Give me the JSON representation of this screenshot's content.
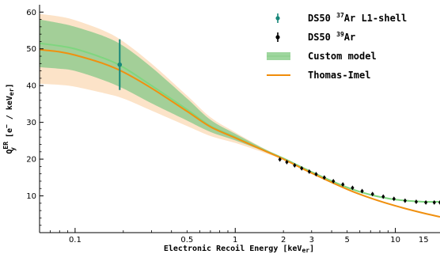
{
  "chart_data": {
    "type": "line",
    "xlabel": {
      "base": "Electronic Recoil Energy [keV",
      "sub": "er",
      "tail": "]"
    },
    "ylabel": {
      "q": "Q",
      "sub": "y",
      "sup": "ER",
      "tail": " [e",
      "tailsup": "−",
      "tail2": " / keV",
      "tailsub": "er",
      "tail3": "]"
    },
    "x_scale": "log",
    "xlim": [
      0.06,
      19
    ],
    "ylim": [
      0,
      62
    ],
    "x_ticks": [
      {
        "v": 0.1,
        "label": "0.1"
      },
      {
        "v": 0.5,
        "label": "0.5"
      },
      {
        "v": 1,
        "label": "1"
      },
      {
        "v": 2,
        "label": "2"
      },
      {
        "v": 3,
        "label": "3"
      },
      {
        "v": 5,
        "label": "5"
      },
      {
        "v": 10,
        "label": "10"
      },
      {
        "v": 15,
        "label": "15"
      }
    ],
    "y_ticks": [
      10,
      20,
      30,
      40,
      50,
      60
    ],
    "legend_position": "top-right",
    "legend": [
      {
        "label_pre": "DS50 ",
        "label_sup": "37",
        "label_post": "Ar L1-shell",
        "kind": "errorpoint",
        "color": "#17877a"
      },
      {
        "label_pre": "DS50 ",
        "label_sup": "39",
        "label_post": "Ar",
        "kind": "errorpoint",
        "color": "#000000"
      },
      {
        "label_pre": "Custom model",
        "label_sup": "",
        "label_post": "",
        "kind": "band",
        "color": "#8fd08f",
        "fill": "#9ed69e"
      },
      {
        "label_pre": "Thomas-Imel",
        "label_sup": "",
        "label_post": "",
        "kind": "line",
        "color": "#f08c0a"
      }
    ],
    "series": [
      {
        "name": "Custom model",
        "color": "#7fd67f",
        "band_color": "#8cc98c",
        "x": [
          0.06,
          0.08,
          0.1,
          0.15,
          0.2,
          0.3,
          0.5,
          0.7,
          1.0,
          1.5,
          2.0,
          3.0,
          5.0,
          7.0,
          10,
          15,
          19
        ],
        "y": [
          51.5,
          50.8,
          50.0,
          47.5,
          45.0,
          40.0,
          33.5,
          29.0,
          26.0,
          22.5,
          20.2,
          16.5,
          12.3,
          10.3,
          9.0,
          8.4,
          8.4
        ],
        "y_low": [
          45.0,
          44.6,
          44.0,
          41.5,
          39.2,
          35.2,
          30.5,
          27.4,
          25.1,
          22.2,
          20.1,
          16.3,
          12.1,
          10.1,
          8.8,
          8.2,
          8.2
        ],
        "y_high": [
          58.0,
          57.0,
          56.0,
          53.5,
          50.8,
          45.0,
          36.5,
          30.7,
          26.9,
          22.9,
          20.4,
          16.7,
          12.5,
          10.5,
          9.2,
          8.6,
          8.6
        ]
      },
      {
        "name": "Thomas-Imel",
        "color": "#f0900f",
        "band_color": "#fbd9b5",
        "x": [
          0.06,
          0.08,
          0.1,
          0.15,
          0.2,
          0.3,
          0.5,
          0.7,
          1.0,
          1.5,
          2.0,
          3.0,
          5.0,
          7.0,
          10,
          15,
          19
        ],
        "y": [
          49.8,
          49.2,
          48.3,
          46.0,
          43.7,
          39.3,
          33.0,
          28.8,
          25.8,
          22.4,
          20.0,
          16.2,
          11.8,
          9.4,
          7.3,
          5.3,
          4.3
        ],
        "y_low": [
          40.5,
          40.2,
          39.7,
          38.0,
          36.5,
          33.2,
          29.0,
          26.3,
          24.4,
          21.8,
          19.8,
          16.0,
          11.6,
          9.2,
          7.1,
          5.1,
          4.1
        ],
        "y_high": [
          59.5,
          58.8,
          57.8,
          55.0,
          52.0,
          46.0,
          37.3,
          31.4,
          27.3,
          23.0,
          20.3,
          16.4,
          12.0,
          9.6,
          7.5,
          5.5,
          4.5
        ]
      }
    ],
    "points": [
      {
        "name": "DS50 37Ar L1-shell",
        "color": "#17877a",
        "marker": "circle",
        "data": [
          {
            "x": 0.19,
            "y": 45.7,
            "yerr_low": 38.8,
            "yerr_high": 52.6
          }
        ]
      },
      {
        "name": "DS50 39Ar",
        "color": "#000000",
        "marker": "diamond",
        "data": [
          {
            "x": 1.9,
            "y": 19.9
          },
          {
            "x": 2.1,
            "y": 19.2
          },
          {
            "x": 2.35,
            "y": 18.3
          },
          {
            "x": 2.6,
            "y": 17.5
          },
          {
            "x": 2.9,
            "y": 16.6
          },
          {
            "x": 3.2,
            "y": 15.9
          },
          {
            "x": 3.6,
            "y": 15.0
          },
          {
            "x": 4.1,
            "y": 14.0
          },
          {
            "x": 4.7,
            "y": 13.1
          },
          {
            "x": 5.4,
            "y": 12.2
          },
          {
            "x": 6.2,
            "y": 11.3
          },
          {
            "x": 7.2,
            "y": 10.5
          },
          {
            "x": 8.4,
            "y": 9.8
          },
          {
            "x": 9.8,
            "y": 9.2
          },
          {
            "x": 11.5,
            "y": 8.7
          },
          {
            "x": 13.5,
            "y": 8.4
          },
          {
            "x": 15.5,
            "y": 8.2
          },
          {
            "x": 17.5,
            "y": 8.2
          },
          {
            "x": 19,
            "y": 8.2
          }
        ]
      }
    ]
  }
}
